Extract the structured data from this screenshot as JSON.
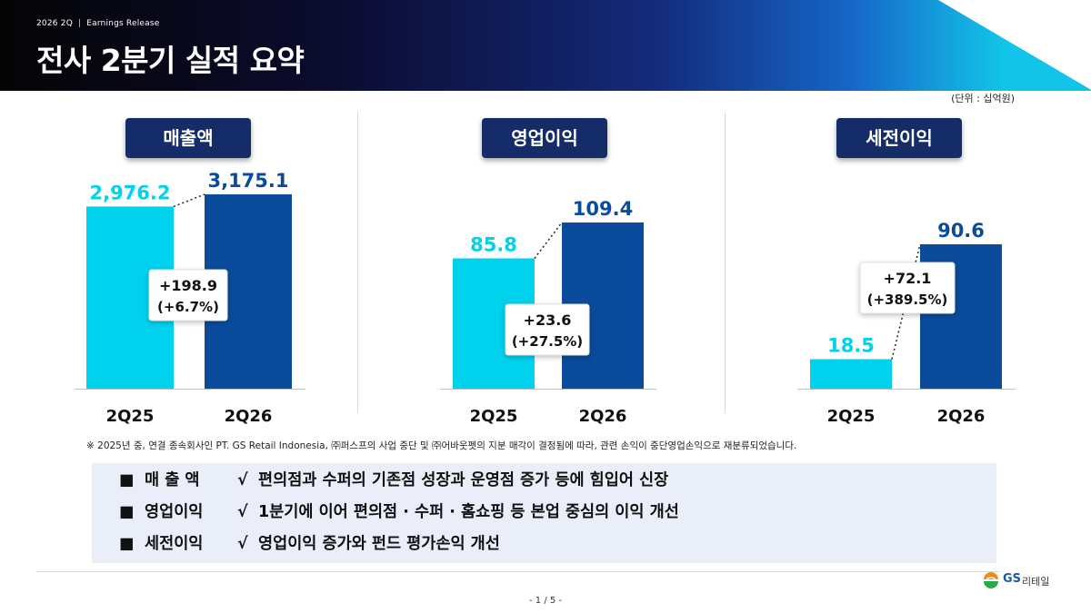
{
  "header": {
    "period": "2026 2Q",
    "category": "Earnings Release",
    "title": "전사 2분기 실적 요약"
  },
  "unit_label": "(단위 : 십억원)",
  "chart_data": [
    {
      "type": "bar",
      "title": "매출액",
      "categories": [
        "2Q25",
        "2Q26"
      ],
      "values": [
        2976.2,
        3175.1
      ],
      "value_labels": [
        "2,976.2",
        "3,175.1"
      ],
      "colors": [
        "#00d2ee",
        "#0a4b9c"
      ],
      "change": {
        "amount": "+198.9",
        "percent": "(+6.7%)"
      }
    },
    {
      "type": "bar",
      "title": "영업이익",
      "categories": [
        "2Q25",
        "2Q26"
      ],
      "values": [
        85.8,
        109.4
      ],
      "value_labels": [
        "85.8",
        "109.4"
      ],
      "colors": [
        "#00d2ee",
        "#0a4b9c"
      ],
      "change": {
        "amount": "+23.6",
        "percent": "(+27.5%)"
      }
    },
    {
      "type": "bar",
      "title": "세전이익",
      "categories": [
        "2Q25",
        "2Q26"
      ],
      "values": [
        18.5,
        90.6
      ],
      "value_labels": [
        "18.5",
        "90.6"
      ],
      "colors": [
        "#00d2ee",
        "#0a4b9c"
      ],
      "change": {
        "amount": "+72.1",
        "percent": "(+389.5%)"
      }
    }
  ],
  "footnote": "※ 2025년 중, 연결 종속회사인 PT. GS Retail Indonesia, ㈜퍼스프의 사업 중단 및 ㈜어바웃펫의 지분 매각이 결정됨에 따라, 관련 손익이 중단영업손익으로 재분류되었습니다.",
  "summary": [
    {
      "bullet": "■",
      "label": "매 출 액",
      "check": "√",
      "text": "편의점과 수퍼의 기존점 성장과 운영점 증가 등에 힘입어 신장"
    },
    {
      "bullet": "■",
      "label": "영업이익",
      "check": "√",
      "text": "1분기에 이어 편의점 · 수퍼 · 홈쇼핑 등 본업 중심의 이익 개선"
    },
    {
      "bullet": "■",
      "label": "세전이익",
      "check": "√",
      "text": "영업이익 증가와 펀드 평가손익 개선"
    }
  ],
  "logo": {
    "brand": "GS",
    "name": "리테일"
  },
  "page_number": "- 1 / 5 -"
}
